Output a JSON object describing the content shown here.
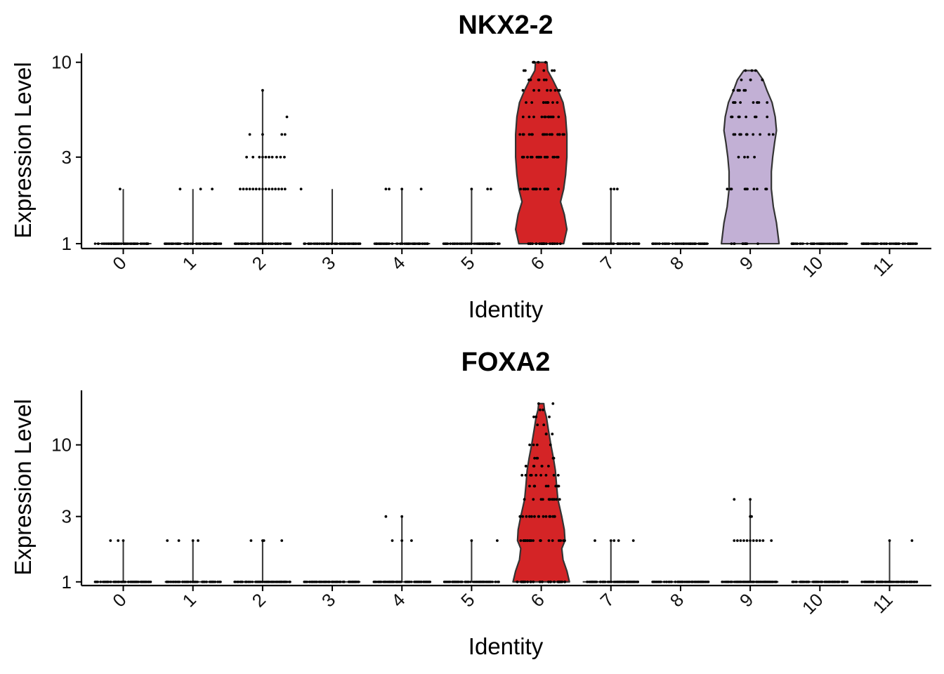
{
  "chart_data": [
    {
      "type": "violin",
      "title": "NKX2-2",
      "xlabel": "Identity",
      "ylabel": "Expression Level",
      "y_scale": "log",
      "ylim": [
        0.94,
        11.2
      ],
      "y_ticks": [
        1,
        3,
        10
      ],
      "y_tick_labels": [
        "1",
        "3",
        "10"
      ],
      "categories": [
        "0",
        "1",
        "2",
        "3",
        "4",
        "5",
        "6",
        "7",
        "8",
        "9",
        "10",
        "11"
      ],
      "violins": [
        {
          "category": "0",
          "max": 2.0,
          "points": [
            [
              -0.05,
              2.0
            ]
          ],
          "n_base": 80
        },
        {
          "category": "1",
          "max": 2.0,
          "points": [
            [
              -0.2,
              2.0
            ],
            [
              0.12,
              2.0
            ],
            [
              0.3,
              2.0
            ]
          ],
          "n_base": 80
        },
        {
          "category": "2",
          "max": 7.0,
          "points": [
            [
              0.0,
              7.0
            ],
            [
              0.38,
              5.0
            ],
            [
              -0.2,
              4.0
            ],
            [
              0.0,
              4.0
            ],
            [
              0.3,
              4.0
            ],
            [
              0.35,
              4.0
            ],
            [
              -0.25,
              3.0
            ],
            [
              -0.15,
              3.0
            ],
            [
              -0.05,
              3.0
            ],
            [
              0.0,
              3.0
            ],
            [
              0.05,
              3.0
            ],
            [
              0.1,
              3.0
            ],
            [
              0.15,
              3.0
            ],
            [
              0.22,
              3.0
            ],
            [
              0.28,
              3.0
            ],
            [
              0.34,
              3.0
            ],
            [
              -0.35,
              2.0
            ],
            [
              -0.3,
              2.0
            ],
            [
              -0.25,
              2.0
            ],
            [
              -0.2,
              2.0
            ],
            [
              -0.15,
              2.0
            ],
            [
              -0.1,
              2.0
            ],
            [
              -0.05,
              2.0
            ],
            [
              0.0,
              2.0
            ],
            [
              0.05,
              2.0
            ],
            [
              0.1,
              2.0
            ],
            [
              0.15,
              2.0
            ],
            [
              0.2,
              2.0
            ],
            [
              0.25,
              2.0
            ],
            [
              0.3,
              2.0
            ],
            [
              0.35,
              2.0
            ],
            [
              0.6,
              2.0
            ]
          ],
          "n_base": 80
        },
        {
          "category": "3",
          "max": 2.0,
          "points": [],
          "n_base": 80
        },
        {
          "category": "4",
          "max": 2.0,
          "points": [
            [
              -0.25,
              2.0
            ],
            [
              -0.2,
              2.0
            ],
            [
              0.0,
              2.0
            ],
            [
              0.3,
              2.0
            ]
          ],
          "n_base": 80
        },
        {
          "category": "5",
          "max": 2.0,
          "points": [
            [
              0.0,
              2.0
            ],
            [
              0.25,
              2.0
            ],
            [
              0.3,
              2.0
            ]
          ],
          "n_base": 80
        },
        {
          "category": "6",
          "max": 10.0,
          "fill": "#d42426",
          "violin": [
            [
              1.0,
              0.35
            ],
            [
              1.2,
              0.4
            ],
            [
              1.45,
              0.36
            ],
            [
              1.7,
              0.3
            ],
            [
              2.0,
              0.35
            ],
            [
              2.4,
              0.38
            ],
            [
              3.0,
              0.4
            ],
            [
              4.0,
              0.4
            ],
            [
              5.0,
              0.38
            ],
            [
              6.0,
              0.34
            ],
            [
              7.0,
              0.26
            ],
            [
              8.0,
              0.18
            ],
            [
              9.0,
              0.1
            ],
            [
              10.0,
              0.09
            ]
          ],
          "dense_levels": [
            [
              1,
              0.34,
              20
            ],
            [
              2,
              0.36,
              20
            ],
            [
              3,
              0.36,
              18
            ],
            [
              4,
              0.36,
              18
            ],
            [
              5,
              0.3,
              12
            ],
            [
              6,
              0.26,
              10
            ],
            [
              7,
              0.3,
              8
            ],
            [
              8,
              0.32,
              6
            ],
            [
              9,
              0.3,
              5
            ],
            [
              10,
              0.3,
              5
            ]
          ],
          "n_base": 40
        },
        {
          "category": "7",
          "max": 2.0,
          "points": [
            [
              0.0,
              2.0
            ],
            [
              0.05,
              2.0
            ],
            [
              0.1,
              2.0
            ]
          ],
          "n_base": 80
        },
        {
          "category": "8",
          "max": 1.0,
          "points": [],
          "n_base": 80
        },
        {
          "category": "9",
          "max": 9.0,
          "fill": "#c2b0d5",
          "violin": [
            [
              1.0,
              0.45
            ],
            [
              1.3,
              0.41
            ],
            [
              1.6,
              0.36
            ],
            [
              2.0,
              0.33
            ],
            [
              2.5,
              0.33
            ],
            [
              3.0,
              0.35
            ],
            [
              3.6,
              0.38
            ],
            [
              4.2,
              0.41
            ],
            [
              5.0,
              0.39
            ],
            [
              6.0,
              0.34
            ],
            [
              7.0,
              0.26
            ],
            [
              8.0,
              0.2
            ],
            [
              9.0,
              0.1
            ]
          ],
          "dense_levels": [
            [
              1,
              0.3,
              10
            ],
            [
              2,
              0.4,
              10
            ],
            [
              3,
              0.2,
              4
            ],
            [
              4,
              0.38,
              10
            ],
            [
              5,
              0.3,
              8
            ],
            [
              6,
              0.3,
              9
            ],
            [
              7,
              0.28,
              6
            ],
            [
              8,
              0.2,
              4
            ],
            [
              9,
              0.1,
              3
            ]
          ],
          "n_base": 30
        },
        {
          "category": "10",
          "max": 1.0,
          "points": [],
          "n_base": 80
        },
        {
          "category": "11",
          "max": 1.0,
          "points": [],
          "n_base": 80
        }
      ]
    },
    {
      "type": "violin",
      "title": "FOXA2",
      "xlabel": "Identity",
      "ylabel": "Expression Level",
      "y_scale": "log",
      "ylim": [
        0.94,
        25
      ],
      "y_ticks": [
        1,
        3,
        10
      ],
      "y_tick_labels": [
        "1",
        "3",
        "10"
      ],
      "categories": [
        "0",
        "1",
        "2",
        "3",
        "4",
        "5",
        "6",
        "7",
        "8",
        "9",
        "10",
        "11"
      ],
      "violins": [
        {
          "category": "0",
          "max": 2.0,
          "points": [
            [
              -0.2,
              2.0
            ],
            [
              -0.08,
              2.0
            ],
            [
              0.0,
              2.0
            ]
          ],
          "n_base": 80
        },
        {
          "category": "1",
          "max": 2.0,
          "points": [
            [
              -0.4,
              2.0
            ],
            [
              -0.22,
              2.0
            ],
            [
              0.0,
              2.0
            ],
            [
              0.08,
              2.0
            ]
          ],
          "n_base": 80
        },
        {
          "category": "2",
          "max": 2.0,
          "points": [
            [
              -0.18,
              2.0
            ],
            [
              0.0,
              2.0
            ],
            [
              0.02,
              2.0
            ],
            [
              0.3,
              2.0
            ]
          ],
          "n_base": 80
        },
        {
          "category": "3",
          "max": 1.0,
          "points": [],
          "n_base": 80
        },
        {
          "category": "4",
          "max": 3.0,
          "points": [
            [
              -0.25,
              3.0
            ],
            [
              0.0,
              3.0
            ],
            [
              -0.15,
              2.0
            ],
            [
              0.0,
              2.0
            ],
            [
              0.15,
              2.0
            ]
          ],
          "n_base": 80
        },
        {
          "category": "5",
          "max": 2.0,
          "points": [
            [
              0.0,
              2.0
            ],
            [
              0.4,
              2.0
            ]
          ],
          "n_base": 80
        },
        {
          "category": "6",
          "max": 20.0,
          "fill": "#d42426",
          "violin": [
            [
              1.0,
              0.44
            ],
            [
              1.2,
              0.4
            ],
            [
              1.45,
              0.34
            ],
            [
              1.75,
              0.32
            ],
            [
              2.0,
              0.37
            ],
            [
              2.4,
              0.36
            ],
            [
              3.0,
              0.32
            ],
            [
              4.0,
              0.26
            ],
            [
              5.0,
              0.24
            ],
            [
              6.5,
              0.22
            ],
            [
              8.0,
              0.19
            ],
            [
              10.0,
              0.15
            ],
            [
              13.0,
              0.11
            ],
            [
              16.0,
              0.08
            ],
            [
              18.0,
              0.05
            ],
            [
              20.0,
              0.04
            ]
          ],
          "dense_levels": [
            [
              1,
              0.4,
              22
            ],
            [
              2,
              0.38,
              22
            ],
            [
              3,
              0.34,
              16
            ],
            [
              4,
              0.3,
              12
            ],
            [
              5,
              0.28,
              10
            ],
            [
              6,
              0.3,
              9
            ],
            [
              7,
              0.26,
              7
            ],
            [
              8,
              0.3,
              6
            ],
            [
              10,
              0.22,
              4
            ],
            [
              12,
              0.3,
              3
            ],
            [
              14,
              0.2,
              2
            ],
            [
              16,
              0.18,
              3
            ],
            [
              18,
              0.15,
              2
            ],
            [
              20,
              0.2,
              2
            ]
          ],
          "n_base": 40
        },
        {
          "category": "7",
          "max": 2.0,
          "points": [
            [
              -0.25,
              2.0
            ],
            [
              0.0,
              2.0
            ],
            [
              0.05,
              2.0
            ],
            [
              0.12,
              2.0
            ],
            [
              0.35,
              2.0
            ]
          ],
          "n_base": 80
        },
        {
          "category": "8",
          "max": 1.0,
          "points": [],
          "n_base": 80
        },
        {
          "category": "9",
          "max": 4.0,
          "points": [
            [
              -0.25,
              4.0
            ],
            [
              0.0,
              4.0
            ],
            [
              0.0,
              3.0
            ],
            [
              0.02,
              3.0
            ],
            [
              -0.25,
              2.0
            ],
            [
              -0.2,
              2.0
            ],
            [
              -0.15,
              2.0
            ],
            [
              -0.1,
              2.0
            ],
            [
              -0.05,
              2.0
            ],
            [
              0.0,
              2.0
            ],
            [
              0.05,
              2.0
            ],
            [
              0.1,
              2.0
            ],
            [
              0.15,
              2.0
            ],
            [
              0.2,
              2.0
            ],
            [
              0.33,
              2.0
            ]
          ],
          "n_base": 80
        },
        {
          "category": "10",
          "max": 1.0,
          "points": [],
          "n_base": 80
        },
        {
          "category": "11",
          "max": 2.0,
          "points": [
            [
              0.0,
              2.0
            ],
            [
              0.35,
              2.0
            ]
          ],
          "n_base": 80
        }
      ]
    }
  ]
}
